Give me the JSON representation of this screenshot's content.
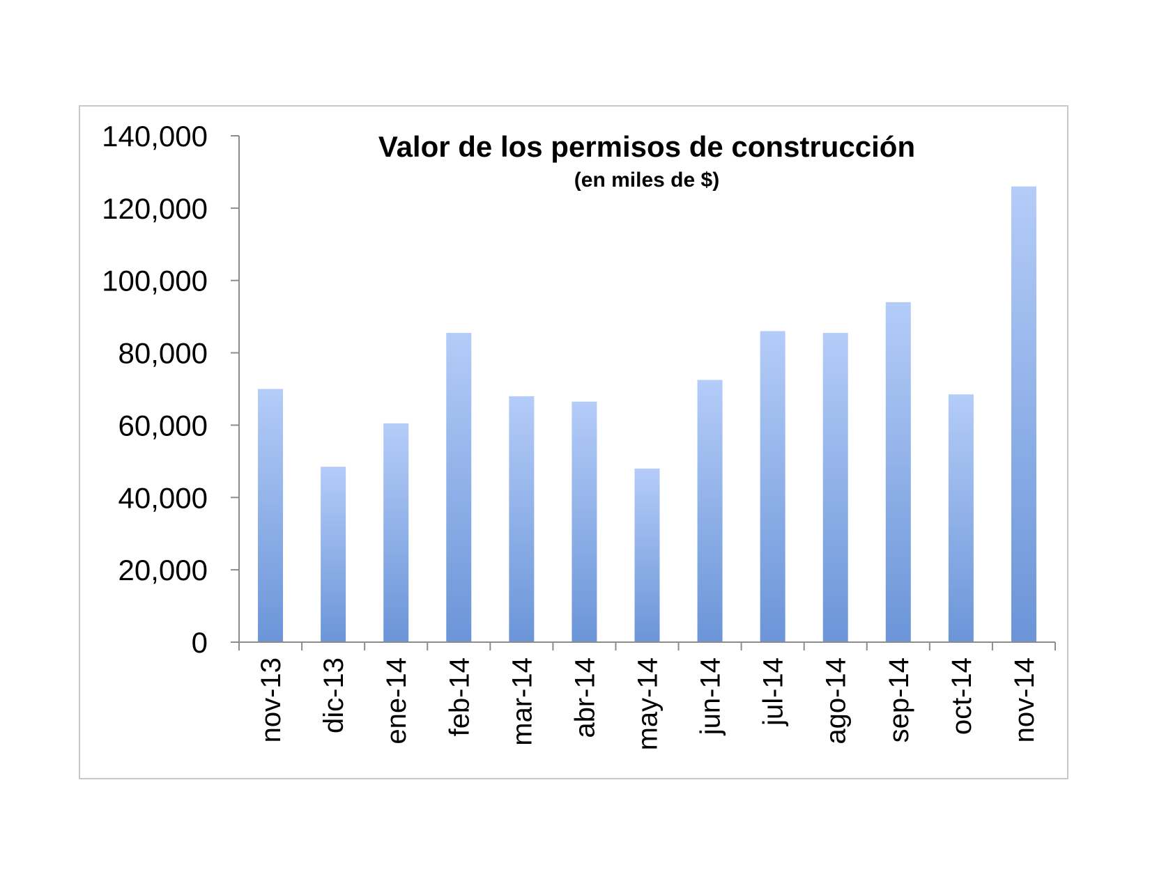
{
  "chart_data": {
    "type": "bar",
    "title": "Valor de los permisos de construcción",
    "subtitle": "(en miles de $)",
    "xlabel": "",
    "ylabel": "",
    "categories": [
      "nov-13",
      "dic-13",
      "ene-14",
      "feb-14",
      "mar-14",
      "abr-14",
      "may-14",
      "jun-14",
      "jul-14",
      "ago-14",
      "sep-14",
      "oct-14",
      "nov-14"
    ],
    "values": [
      70000,
      48500,
      60500,
      85500,
      68000,
      66500,
      48000,
      72500,
      86000,
      85500,
      94000,
      68500,
      126000
    ],
    "ylim": [
      0,
      140000
    ],
    "yticks": [
      "0",
      "20,000",
      "40,000",
      "60,000",
      "80,000",
      "100,000",
      "120,000",
      "140,000"
    ],
    "ytick_values": [
      0,
      20000,
      40000,
      60000,
      80000,
      100000,
      120000,
      140000
    ],
    "grid": false,
    "legend": "none",
    "colors": {
      "bar_top": "#b4ccf8",
      "bar_bottom": "#6b95d8",
      "axis": "#8c8c8c",
      "frame": "#c8c8c8"
    }
  }
}
